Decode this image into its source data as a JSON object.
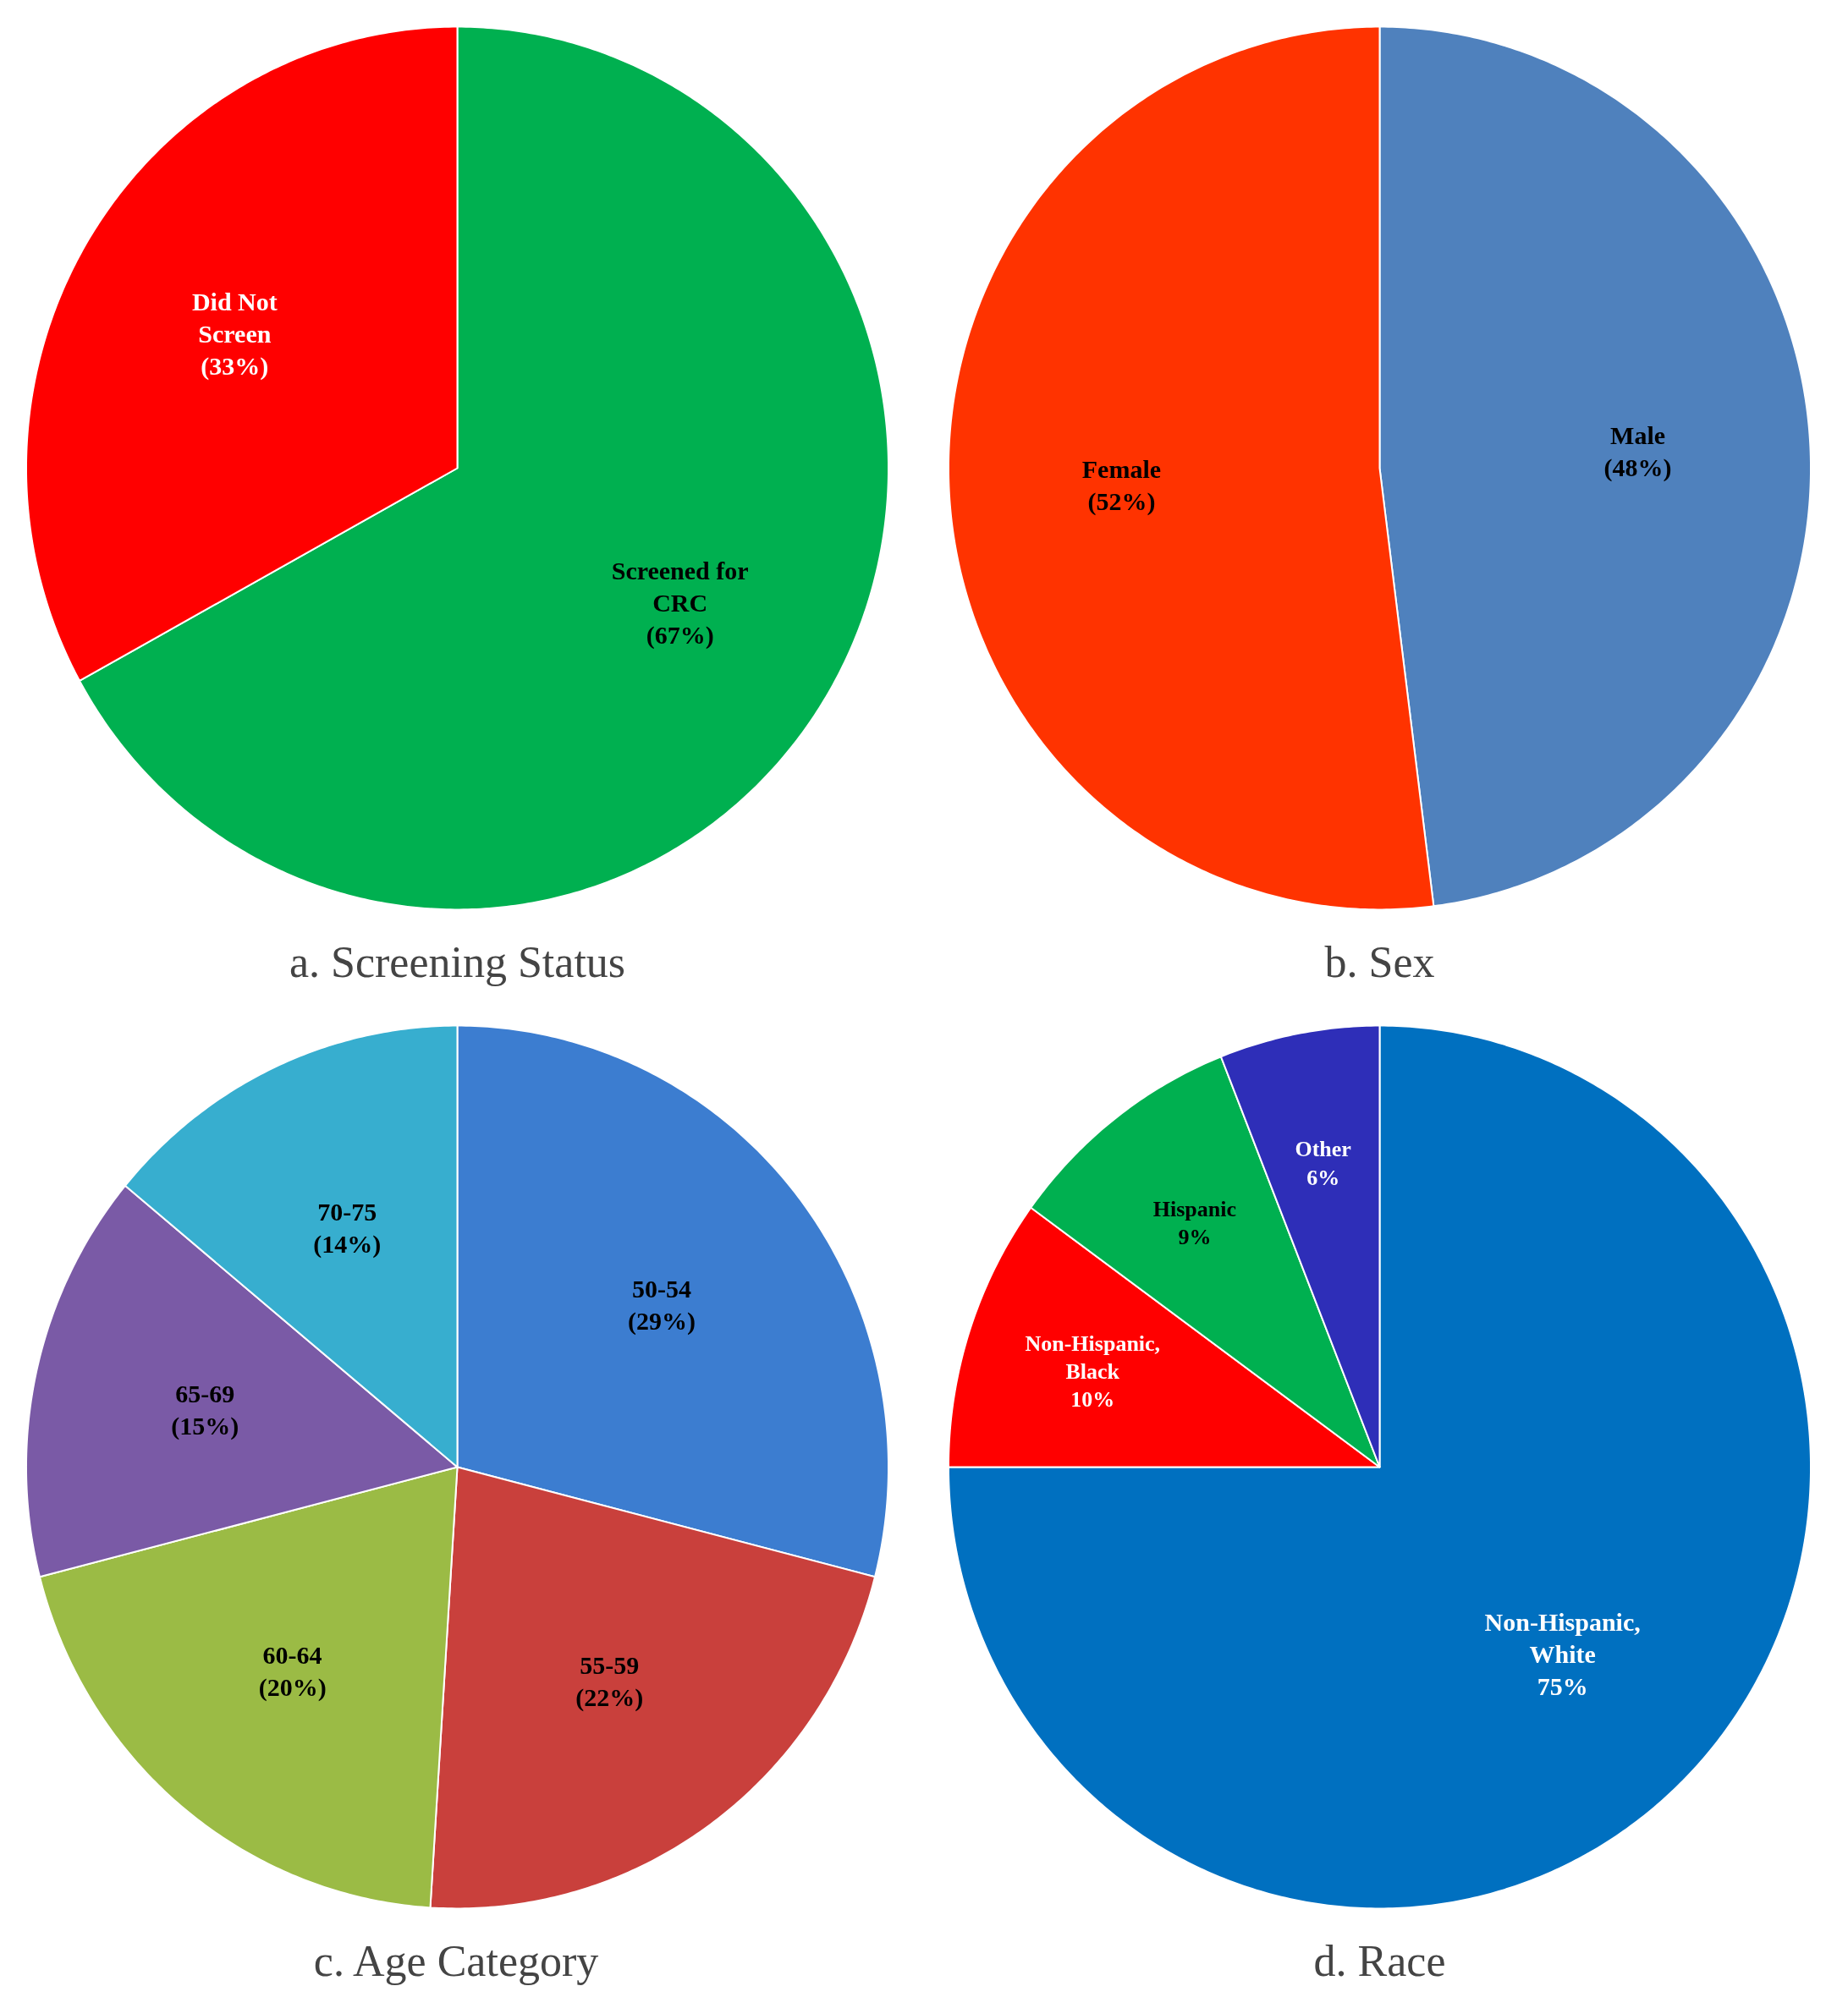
{
  "chart_data": [
    {
      "type": "pie",
      "title": "a. Screening Status",
      "categories": [
        "Screened for CRC",
        "Did Not Screen"
      ],
      "values": [
        67,
        33
      ],
      "colors": [
        "#00b050",
        "#ff0000"
      ],
      "value_labels": [
        "(67%)",
        "(33%)"
      ]
    },
    {
      "type": "pie",
      "title": "b. Sex",
      "categories": [
        "Male",
        "Female"
      ],
      "values": [
        48,
        52
      ],
      "colors": [
        "#4f81bd",
        "#ff3300"
      ],
      "value_labels": [
        "(48%)",
        "(52%)"
      ]
    },
    {
      "type": "pie",
      "title": "c. Age Category",
      "categories": [
        "50-54",
        "55-59",
        "60-64",
        "65-69",
        "70-75"
      ],
      "values": [
        29,
        22,
        20,
        15,
        14
      ],
      "colors": [
        "#3c7dd0",
        "#c9403c",
        "#9bbb45",
        "#7a5aa6",
        "#37aecf"
      ],
      "value_labels": [
        "(29%)",
        "(22%)",
        "(20%)",
        "(15%)",
        "(14%)"
      ]
    },
    {
      "type": "pie",
      "title": "d. Race",
      "categories": [
        "Non-Hispanic, White",
        "Non-Hispanic, Black",
        "Hispanic",
        "Other"
      ],
      "values": [
        75,
        10,
        9,
        6
      ],
      "colors": [
        "#0070c0",
        "#ff0000",
        "#00b050",
        "#2e2eb8"
      ],
      "value_labels": [
        "75%",
        "10%",
        "9%",
        "6%"
      ]
    }
  ]
}
